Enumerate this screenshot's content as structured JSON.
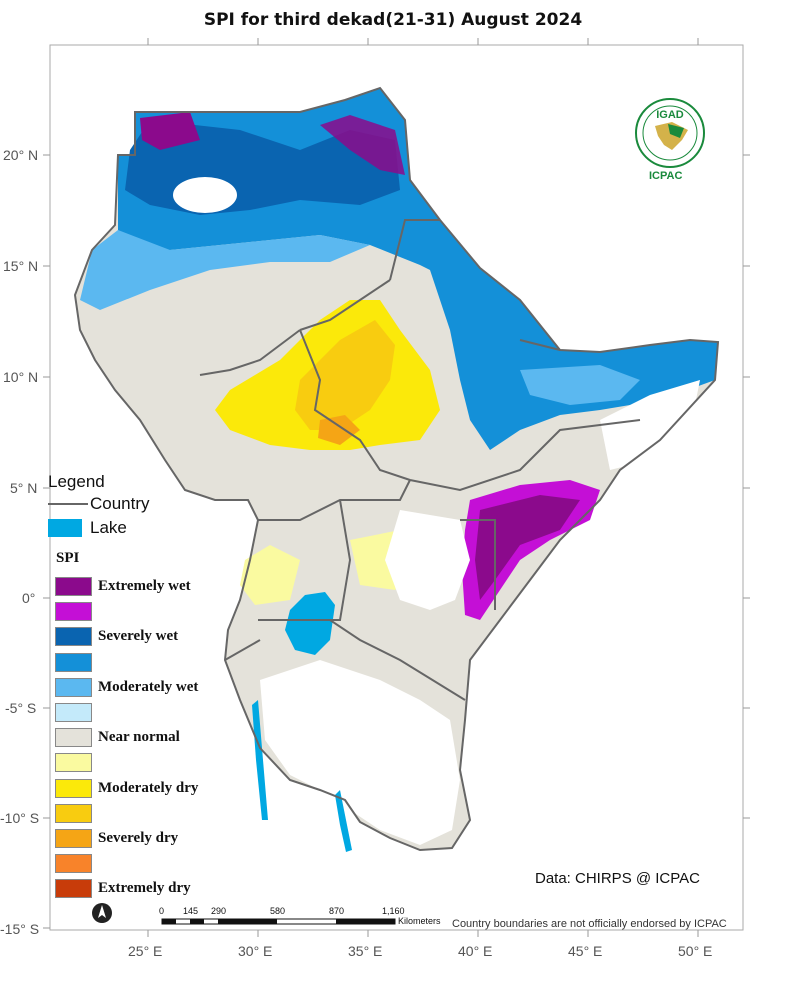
{
  "title": "SPI  for third dekad(21-31) August 2024",
  "latitude_labels": [
    "20° N",
    "15° N",
    "10° N",
    "5° N",
    "0°",
    "-5° S",
    "-10° S",
    "-15° S"
  ],
  "longitude_labels": [
    "25° E",
    "30° E",
    "35° E",
    "40° E",
    "45° E",
    "50° E"
  ],
  "legend": {
    "heading": "Legend",
    "country_label": "Country",
    "lake_label": "Lake",
    "lake_color": "#00a8e2",
    "spi_heading": "SPI",
    "classes": [
      {
        "label": "Extremely wet",
        "color": "#8b0a8c"
      },
      {
        "label": "",
        "color": "#c40fd6"
      },
      {
        "label": "Severely wet",
        "color": "#0a64b0"
      },
      {
        "label": "",
        "color": "#1490d8"
      },
      {
        "label": "Moderately wet",
        "color": "#5bb8f0"
      },
      {
        "label": "",
        "color": "#c4eafa"
      },
      {
        "label": "Near normal",
        "color": "#e4e2da"
      },
      {
        "label": "",
        "color": "#fafaa0"
      },
      {
        "label": "Moderately dry",
        "color": "#fbe90a"
      },
      {
        "label": "",
        "color": "#f8cc10"
      },
      {
        "label": "Severely dry",
        "color": "#f5a515"
      },
      {
        "label": "",
        "color": "#f8832a"
      },
      {
        "label": "Extremely dry",
        "color": "#c83c0a"
      }
    ]
  },
  "scale_bar": {
    "ticks": [
      "0",
      "145",
      "290",
      "580",
      "870",
      "1,160"
    ],
    "unit": "Kilometers"
  },
  "data_credit": "Data: CHIRPS @ ICPAC",
  "disclaimer": "Country boundaries are not officially endorsed by ICPAC",
  "logo": {
    "top_text": "IGAD",
    "bottom_text": "ICPAC"
  }
}
